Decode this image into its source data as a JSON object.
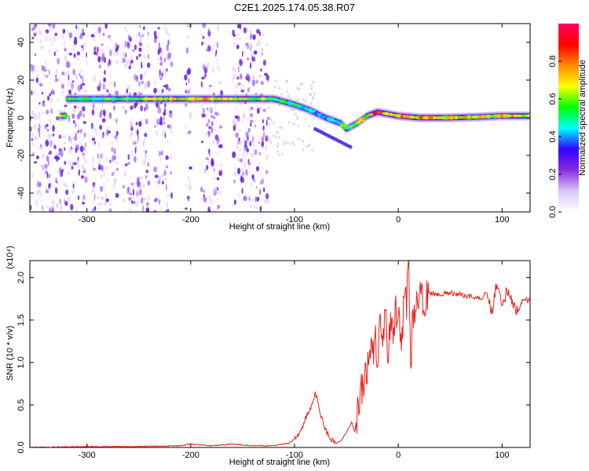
{
  "title": "C2E1.2025.174.05.38.R07",
  "chart_data": [
    {
      "type": "heatmap",
      "xlabel": "Height of straight line (km)",
      "ylabel": "Frequency (Hz)",
      "xlim": [
        -355,
        127
      ],
      "ylim": [
        -50,
        50
      ],
      "xticks": [
        -300,
        -200,
        -100,
        0,
        100
      ],
      "yticks": [
        -40,
        -20,
        0,
        20,
        40
      ],
      "colorbar": {
        "label": "Normalized spectral amplitude",
        "ticks": [
          "0.0",
          "0.2",
          "0.4",
          "0.6",
          "0.8"
        ],
        "range": [
          0,
          1
        ],
        "colors": [
          "#ffffff",
          "#d8c8f5",
          "#8a2be2",
          "#3300ff",
          "#00ffff",
          "#00ff00",
          "#ffff00",
          "#ff8800",
          "#ff0000",
          "#ff0066"
        ]
      },
      "ridge": {
        "x": [
          -320,
          -250,
          -200,
          -150,
          -120,
          -100,
          -85,
          -70,
          -55,
          -50,
          -40,
          -30,
          -20,
          -10,
          0,
          20,
          50,
          80,
          100,
          127
        ],
        "freq": [
          10,
          10,
          10,
          10,
          10,
          7,
          4,
          0,
          -3,
          -6,
          -3,
          1,
          3,
          2,
          1,
          0,
          0,
          0.5,
          1,
          1
        ],
        "amplitude": [
          0.55,
          0.6,
          0.75,
          0.7,
          0.6,
          0.5,
          0.45,
          0.5,
          0.55,
          0.6,
          0.65,
          0.75,
          0.85,
          0.8,
          0.8,
          0.8,
          0.75,
          0.7,
          0.75,
          0.7
        ]
      }
    },
    {
      "type": "line",
      "xlabel": "Height of straight line (km)",
      "ylabel": "SNR (10 * v/v)",
      "scale_label": "(x10⁴)",
      "xlim": [
        -355,
        127
      ],
      "ylim": [
        0,
        2.2
      ],
      "xticks": [
        -300,
        -200,
        -100,
        0,
        100
      ],
      "yticks": [
        "0.0",
        "0.5",
        "1.0",
        "1.5",
        "2.0"
      ],
      "color": "#e8211c",
      "series": [
        {
          "x": [
            -355,
            -300,
            -250,
            -210,
            -200,
            -180,
            -160,
            -140,
            -120,
            -105,
            -100,
            -95,
            -90,
            -85,
            -82,
            -80,
            -78,
            -75,
            -72,
            -70,
            -65,
            -60,
            -55,
            -50,
            -48,
            -45,
            -42,
            -40,
            -38,
            -35,
            -30,
            -28,
            -25,
            -22,
            -20,
            -18,
            -15,
            -12,
            -10,
            -8,
            -5,
            -3,
            0,
            3,
            5,
            8,
            10,
            12,
            14,
            16,
            20,
            25,
            30,
            35,
            40,
            50,
            60,
            70,
            80,
            85,
            90,
            95,
            100,
            105,
            110,
            115,
            120,
            127
          ],
          "y": [
            0.0,
            0.01,
            0.01,
            0.02,
            0.04,
            0.02,
            0.04,
            0.02,
            0.02,
            0.05,
            0.1,
            0.18,
            0.32,
            0.45,
            0.55,
            0.63,
            0.55,
            0.4,
            0.3,
            0.2,
            0.1,
            0.05,
            0.08,
            0.18,
            0.22,
            0.3,
            0.18,
            0.35,
            0.55,
            0.72,
            0.95,
            1.2,
            1.05,
            1.35,
            0.95,
            1.4,
            1.2,
            1.55,
            0.9,
            1.48,
            1.25,
            1.6,
            1.58,
            1.2,
            1.6,
            1.72,
            2.15,
            1.0,
            1.55,
            1.68,
            1.72,
            1.76,
            1.8,
            1.82,
            1.8,
            1.82,
            1.8,
            1.78,
            1.75,
            1.85,
            1.6,
            1.95,
            1.72,
            1.82,
            1.7,
            1.6,
            1.75,
            1.72
          ]
        }
      ]
    }
  ]
}
